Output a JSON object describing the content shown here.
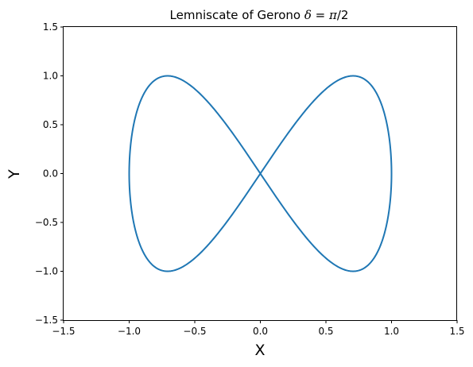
{
  "chart_data": {
    "type": "line",
    "title": "Lemniscate of Gerono δ = π/2",
    "title_parts": {
      "text": "Lemniscate of Gerono ",
      "delta": "δ",
      "equals": " = ",
      "pi": "π",
      "fraction": "/2"
    },
    "xlabel": "X",
    "ylabel": "Y",
    "xlim": [
      -1.5,
      1.5
    ],
    "ylim": [
      -1.5,
      1.5
    ],
    "xticks": [
      -1.5,
      -1.0,
      -0.5,
      0.0,
      0.5,
      1.0,
      1.5
    ],
    "yticks": [
      -1.5,
      -1.0,
      -0.5,
      0.0,
      0.5,
      1.0,
      1.5
    ],
    "xtick_labels": [
      "−1.5",
      "−1.0",
      "−0.5",
      "0.0",
      "0.5",
      "1.0",
      "1.5"
    ],
    "ytick_labels": [
      "−1.5",
      "−1.0",
      "−0.5",
      "0.0",
      "0.5",
      "1.0",
      "1.5"
    ],
    "grid": false,
    "series": [
      {
        "color": "#1f77b4",
        "curve": {
          "x_equation": "sin(t)",
          "y_equation": "sin(2t)",
          "parameter": "t",
          "t_range": [
            0,
            6.283185307
          ]
        },
        "x": [
          0.0,
          0.259,
          0.5,
          0.707,
          0.866,
          0.966,
          1.0,
          0.966,
          0.866,
          0.707,
          0.5,
          0.259,
          0.0,
          -0.259,
          -0.5,
          -0.707,
          -0.866,
          -0.966,
          -1.0,
          -0.966,
          -0.866,
          -0.707,
          -0.5,
          -0.259,
          0.0
        ],
        "y": [
          0.0,
          0.5,
          0.866,
          1.0,
          0.866,
          0.5,
          0.0,
          -0.5,
          -0.866,
          -1.0,
          -0.866,
          -0.5,
          0.0,
          0.5,
          0.866,
          1.0,
          0.866,
          0.5,
          0.0,
          -0.5,
          -0.866,
          -1.0,
          -0.866,
          -0.5,
          0.0
        ]
      }
    ]
  }
}
